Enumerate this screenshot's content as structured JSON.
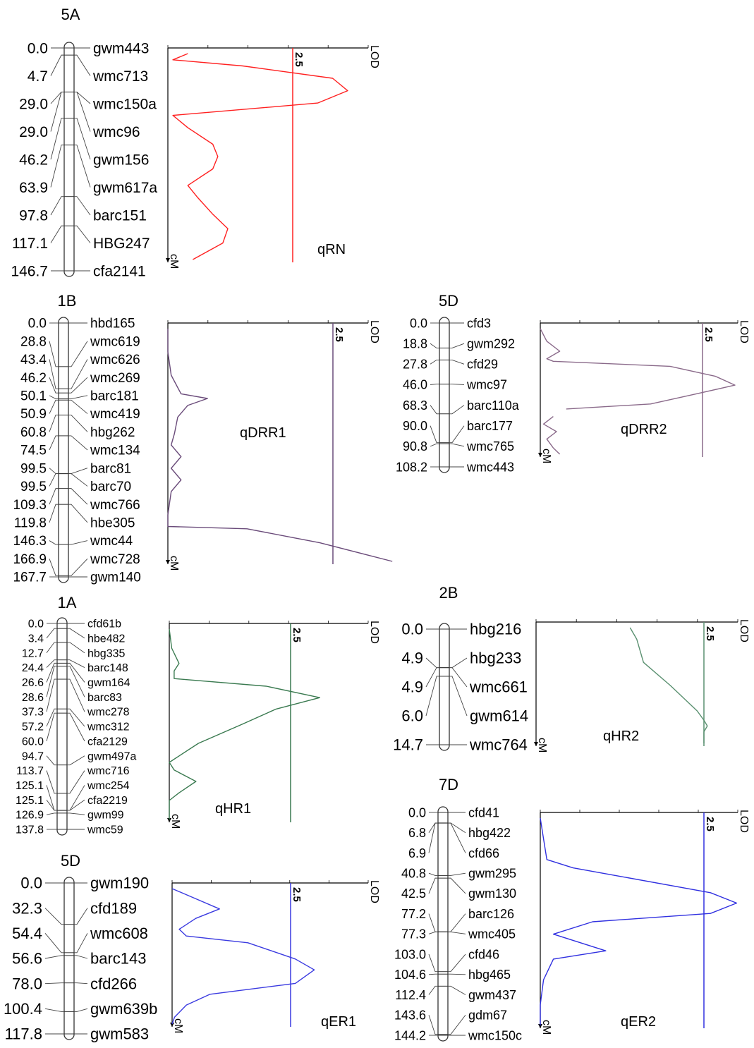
{
  "panels": [
    {
      "id": "5A",
      "chromosome": "5A",
      "qtl": "qRN",
      "color": "#ff2020",
      "threshold_label": "2.5",
      "lod_label": "LOD",
      "cm_label": "cM",
      "lod_max": 4.0,
      "threshold": 2.5,
      "positions": [
        "0.0",
        "4.7",
        "29.0",
        "29.0",
        "46.2",
        "63.9",
        "97.8",
        "117.1",
        "146.7"
      ],
      "markers": [
        "gwm443",
        "wmc713",
        "wmc150a",
        "wmc96",
        "gwm156",
        "gwm617a",
        "barc151",
        "HBG247",
        "cfa2141"
      ],
      "lod_curve": [
        [
          0.0,
          0.4
        ],
        [
          0.03,
          0.1
        ],
        [
          0.06,
          1.5
        ],
        [
          0.12,
          3.3
        ],
        [
          0.18,
          3.6
        ],
        [
          0.24,
          3.0
        ],
        [
          0.3,
          0.1
        ],
        [
          0.36,
          0.4
        ],
        [
          0.44,
          0.9
        ],
        [
          0.5,
          1.0
        ],
        [
          0.56,
          0.9
        ],
        [
          0.64,
          0.4
        ],
        [
          0.7,
          0.6
        ],
        [
          0.78,
          0.9
        ],
        [
          0.85,
          1.2
        ],
        [
          0.92,
          1.1
        ],
        [
          1.0,
          0.5
        ]
      ]
    },
    {
      "id": "1B",
      "chromosome": "1B",
      "qtl": "qDRR1",
      "color": "#6a4b7a",
      "threshold_label": "2.5",
      "lod_label": "LOD",
      "cm_label": "cM",
      "lod_max": 3.4,
      "threshold": 2.5,
      "positions": [
        "0.0",
        "28.8",
        "43.4",
        "46.2",
        "50.1",
        "50.9",
        "60.8",
        "74.5",
        "99.5",
        "99.5",
        "109.3",
        "119.8",
        "146.3",
        "166.9",
        "167.7"
      ],
      "markers": [
        "hbd165",
        "wmc619",
        "wmc626",
        "wmc269",
        "barc181",
        "wmc419",
        "hbg262",
        "wmc134",
        "barc81",
        "barc70",
        "wmc766",
        "hbe305",
        "wmc44",
        "wmc728",
        "gwm140"
      ],
      "lod_curve": [
        [
          0.0,
          0.0
        ],
        [
          0.1,
          0.0
        ],
        [
          0.2,
          0.05
        ],
        [
          0.28,
          0.2
        ],
        [
          0.3,
          0.6
        ],
        [
          0.33,
          0.3
        ],
        [
          0.38,
          0.15
        ],
        [
          0.45,
          0.1
        ],
        [
          0.5,
          0.05
        ],
        [
          0.55,
          0.2
        ],
        [
          0.6,
          0.05
        ],
        [
          0.65,
          0.2
        ],
        [
          0.7,
          0.05
        ],
        [
          0.8,
          0.0
        ],
        [
          0.85,
          0.0
        ],
        [
          0.86,
          1.2
        ],
        [
          0.92,
          2.3
        ],
        [
          1.0,
          3.4
        ]
      ]
    },
    {
      "id": "5D_top",
      "chromosome": "5D",
      "qtl": "qDRR2",
      "color": "#8a6a8a",
      "threshold_label": "2.5",
      "lod_label": "LOD",
      "cm_label": "cM",
      "lod_max": 3.4,
      "threshold": 2.5,
      "positions": [
        "0.0",
        "18.8",
        "27.8",
        "46.0",
        "68.3",
        "90.0",
        "90.8",
        "108.2"
      ],
      "markers": [
        "cfd3",
        "gwm292",
        "cfd29",
        "wmc97",
        "barc110a",
        "barc177",
        "wmc765",
        "wmc443"
      ],
      "lod_curve": [
        [
          0.0,
          0.0
        ],
        [
          0.1,
          0.1
        ],
        [
          0.18,
          0.3
        ],
        [
          0.24,
          0.1
        ],
        [
          0.26,
          0.2
        ],
        [
          0.3,
          2.0
        ],
        [
          0.38,
          2.7
        ],
        [
          0.45,
          3.0
        ],
        [
          0.52,
          2.4
        ],
        [
          0.6,
          1.7
        ],
        [
          0.64,
          0.4
        ],
        [
          0.65,
          null
        ],
        [
          0.7,
          0.2
        ],
        [
          0.76,
          0.05
        ],
        [
          0.82,
          0.25
        ],
        [
          0.88,
          0.1
        ],
        [
          0.95,
          0.2
        ],
        [
          1.0,
          0.3
        ]
      ]
    },
    {
      "id": "1A",
      "chromosome": "1A",
      "qtl": "qHR1",
      "color": "#3a7a50",
      "threshold_label": "2.5",
      "lod_label": "LOD",
      "cm_label": "cM",
      "lod_max": 4.0,
      "threshold": 2.5,
      "positions": [
        "0.0",
        "3.4",
        "12.7",
        "24.4",
        "26.6",
        "28.6",
        "37.3",
        "57.2",
        "60.0",
        "94.7",
        "113.7",
        "125.1",
        "125.1",
        "126.9",
        "137.8"
      ],
      "markers": [
        "cfd61b",
        "hbe482",
        "hbg335",
        "barc148",
        "gwm164",
        "barc83",
        "wmc278",
        "wmc312",
        "cfa2129",
        "gwm497a",
        "wmc716",
        "wmc254",
        "cfa2219",
        "gwm99",
        "wmc59"
      ],
      "lod_curve": [
        [
          0.0,
          0.0
        ],
        [
          0.1,
          0.05
        ],
        [
          0.18,
          0.2
        ],
        [
          0.22,
          0.1
        ],
        [
          0.26,
          0.1
        ],
        [
          0.3,
          2.0
        ],
        [
          0.36,
          3.1
        ],
        [
          0.42,
          2.2
        ],
        [
          0.5,
          1.5
        ],
        [
          0.6,
          0.6
        ],
        [
          0.7,
          0.0
        ],
        [
          0.74,
          0.1
        ],
        [
          0.8,
          0.55
        ],
        [
          0.86,
          0.2
        ],
        [
          0.9,
          0.0
        ],
        [
          1.0,
          0.0
        ]
      ]
    },
    {
      "id": "2B",
      "chromosome": "2B",
      "qtl": "qHR2",
      "color": "#5a9070",
      "threshold_label": "2.5",
      "lod_label": "LOD",
      "cm_label": "cM",
      "lod_max": 3.0,
      "threshold": 2.5,
      "positions": [
        "0.0",
        "4.9",
        "4.9",
        "6.0",
        "14.7"
      ],
      "markers": [
        "hbg216",
        "hbg233",
        "wmc661",
        "gwm614",
        "wmc764"
      ],
      "lod_curve": [
        [
          0.0,
          1.4
        ],
        [
          0.1,
          1.5
        ],
        [
          0.3,
          1.6
        ],
        [
          0.5,
          2.0
        ],
        [
          0.72,
          2.4
        ],
        [
          0.8,
          2.5
        ],
        [
          0.85,
          2.55
        ],
        [
          0.9,
          2.5
        ],
        [
          1.0,
          2.5
        ]
      ]
    },
    {
      "id": "5D_bottom",
      "chromosome": "5D",
      "qtl": "qER1",
      "color": "#3a3ae0",
      "threshold_label": "2.5",
      "lod_label": "LOD",
      "cm_label": "cM",
      "lod_max": 4.0,
      "threshold": 2.5,
      "positions": [
        "0.0",
        "32.3",
        "54.4",
        "56.6",
        "78.0",
        "100.4",
        "117.8"
      ],
      "markers": [
        "gwm190",
        "cfd189",
        "wmc608",
        "barc143",
        "cfd266",
        "gwm639b",
        "gwm583"
      ],
      "lod_curve": [
        [
          0.0,
          0.0
        ],
        [
          0.06,
          0.4
        ],
        [
          0.15,
          1.0
        ],
        [
          0.22,
          0.5
        ],
        [
          0.3,
          0.15
        ],
        [
          0.35,
          0.3
        ],
        [
          0.4,
          1.6
        ],
        [
          0.52,
          2.6
        ],
        [
          0.6,
          3.0
        ],
        [
          0.7,
          2.6
        ],
        [
          0.78,
          0.8
        ],
        [
          0.86,
          0.3
        ],
        [
          0.95,
          0.05
        ],
        [
          1.0,
          0.0
        ]
      ]
    },
    {
      "id": "7D",
      "chromosome": "7D",
      "qtl": "qER2",
      "color": "#3030e0",
      "threshold_label": "2.5",
      "lod_label": "LOD",
      "cm_label": "cM",
      "lod_max": 3.4,
      "threshold": 2.5,
      "positions": [
        "0.0",
        "6.8",
        "6.9",
        "40.8",
        "42.5",
        "77.2",
        "77.3",
        "103.0",
        "104.6",
        "112.4",
        "143.6",
        "144.2"
      ],
      "markers": [
        "cfd41",
        "hbg422",
        "cfd66",
        "gwm295",
        "gwm130",
        "barc126",
        "wmc405",
        "cfd46",
        "hbg465",
        "gwm437",
        "gdm67",
        "wmc150c"
      ],
      "lod_curve": [
        [
          0.0,
          0.0
        ],
        [
          0.1,
          0.05
        ],
        [
          0.2,
          0.1
        ],
        [
          0.24,
          0.5
        ],
        [
          0.28,
          1.2
        ],
        [
          0.36,
          2.6
        ],
        [
          0.41,
          3.0
        ],
        [
          0.46,
          2.6
        ],
        [
          0.5,
          0.8
        ],
        [
          0.56,
          0.2
        ],
        [
          0.64,
          1.0
        ],
        [
          0.68,
          0.2
        ],
        [
          0.78,
          0.05
        ],
        [
          0.9,
          0.0
        ],
        [
          1.0,
          0.0
        ]
      ]
    }
  ]
}
